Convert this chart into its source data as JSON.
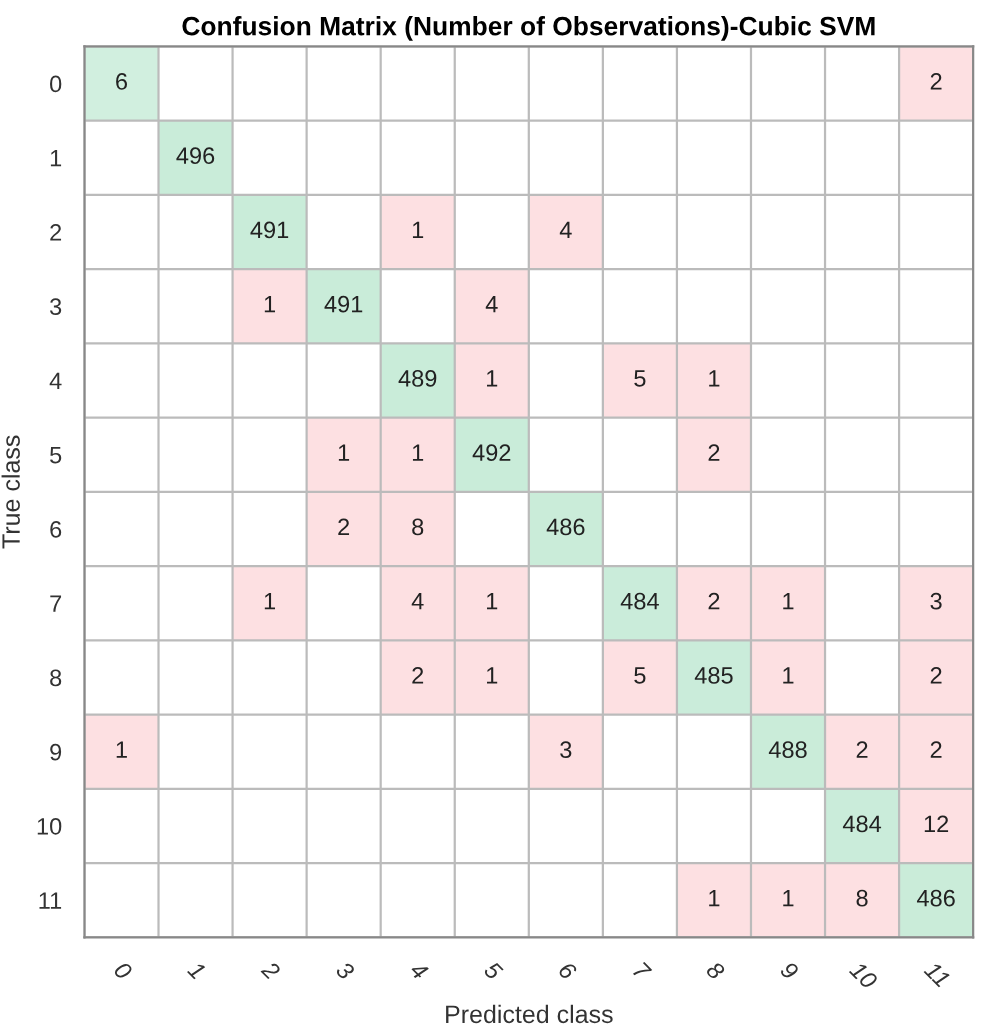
{
  "chart_data": {
    "type": "heatmap",
    "title": "Confusion Matrix (Number of Observations)-Cubic SVM",
    "xlabel": "Predicted class",
    "ylabel": "True class",
    "categories": [
      "0",
      "1",
      "2",
      "3",
      "4",
      "5",
      "6",
      "7",
      "8",
      "9",
      "10",
      "11"
    ],
    "y_categories": [
      "0",
      "1",
      "2",
      "3",
      "4",
      "5",
      "6",
      "7",
      "8",
      "9",
      "10",
      "11"
    ],
    "data_labels": true,
    "cells": [
      [
        6,
        null,
        null,
        null,
        null,
        null,
        null,
        null,
        null,
        null,
        null,
        2
      ],
      [
        null,
        496,
        null,
        null,
        null,
        null,
        null,
        null,
        null,
        null,
        null,
        null
      ],
      [
        null,
        null,
        491,
        null,
        1,
        null,
        4,
        null,
        null,
        null,
        null,
        null
      ],
      [
        null,
        null,
        1,
        491,
        null,
        4,
        null,
        null,
        null,
        null,
        null,
        null
      ],
      [
        null,
        null,
        null,
        null,
        489,
        1,
        null,
        5,
        1,
        null,
        null,
        null
      ],
      [
        null,
        null,
        null,
        1,
        1,
        492,
        null,
        null,
        2,
        null,
        null,
        null
      ],
      [
        null,
        null,
        null,
        2,
        8,
        null,
        486,
        null,
        null,
        null,
        null,
        null
      ],
      [
        null,
        null,
        1,
        null,
        4,
        1,
        null,
        484,
        2,
        1,
        null,
        3
      ],
      [
        null,
        null,
        null,
        null,
        2,
        1,
        null,
        5,
        485,
        1,
        null,
        2
      ],
      [
        1,
        null,
        null,
        null,
        null,
        null,
        3,
        null,
        null,
        488,
        2,
        2
      ],
      [
        null,
        null,
        null,
        null,
        null,
        null,
        null,
        null,
        null,
        null,
        484,
        12
      ],
      [
        null,
        null,
        null,
        null,
        null,
        null,
        null,
        null,
        1,
        1,
        8,
        486
      ]
    ]
  }
}
